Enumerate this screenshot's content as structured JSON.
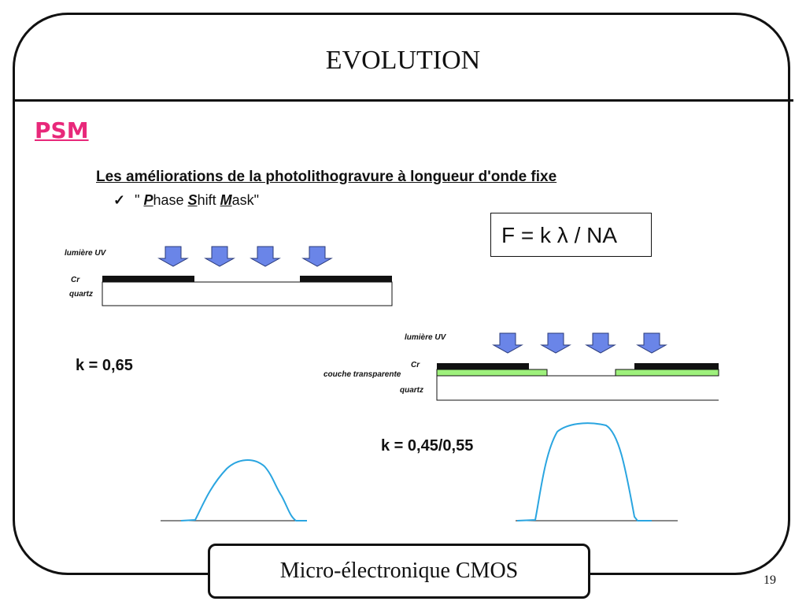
{
  "slide": {
    "title": "EVOLUTION",
    "section": "PSM",
    "subtitle": "Les améliorations de la photolithogravure à longueur d'onde fixe",
    "bullet": {
      "check": "✓",
      "open_quote": "\" ",
      "p": "P",
      "p_rest": "hase ",
      "s": "S",
      "s_rest": "hift ",
      "m": "M",
      "m_rest": "ask\""
    },
    "formula": "F = k λ / NA"
  },
  "diagram1": {
    "uv_label": "lumière UV",
    "cr_label": "Cr",
    "quartz_label": "quartz",
    "k_label": "k = 0,65"
  },
  "diagram2": {
    "uv_label": "lumière UV",
    "cr_label": "Cr",
    "transparent_label": "couche transparente",
    "quartz_label": "quartz",
    "k_label": "k = 0,45/0,55"
  },
  "colors": {
    "accent": "#e8287a",
    "arrow_fill": "#6a85e8",
    "transparent_layer": "#9ef07c",
    "profile": "#2aa5e0"
  },
  "footer": {
    "text": "Micro-électronique CMOS",
    "page": "19"
  }
}
